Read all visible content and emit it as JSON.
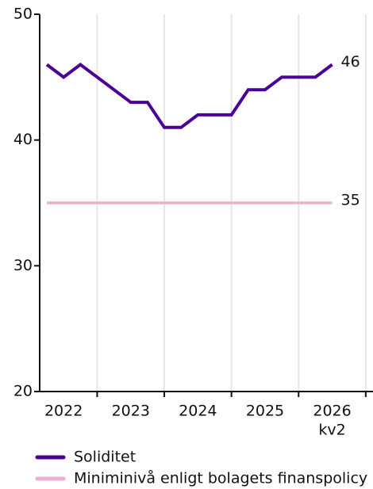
{
  "chart_data": {
    "type": "line",
    "categories": [
      null,
      "2022",
      null,
      null,
      null,
      "2023",
      null,
      null,
      null,
      "2024",
      null,
      null,
      null,
      "2025",
      null,
      null,
      null,
      "2026"
    ],
    "x_sublabel": "kv2",
    "series": [
      {
        "name": "Soliditet",
        "color": "#4b0096",
        "values": [
          46,
          45,
          46,
          45,
          44,
          43,
          43,
          41,
          41,
          42,
          42,
          42,
          44,
          44,
          45,
          45,
          45,
          46
        ]
      },
      {
        "name": "Miniminivå enligt bolagets finanspolicy",
        "color": "#ebb2cd",
        "values": [
          35,
          35,
          35,
          35,
          35,
          35,
          35,
          35,
          35,
          35,
          35,
          35,
          35,
          35,
          35,
          35,
          35,
          35
        ]
      }
    ],
    "ylim": [
      20,
      50
    ],
    "yticks": [
      20,
      30,
      40,
      50
    ]
  }
}
